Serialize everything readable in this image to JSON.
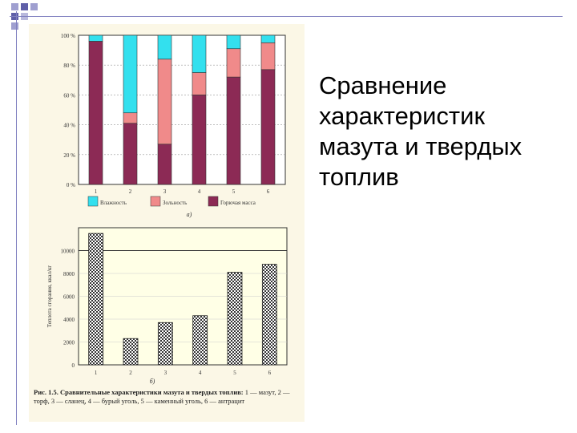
{
  "slide": {
    "title": "Сравнение характеристик мазута и твердых топлив"
  },
  "caption": {
    "lead": "Рис. 1.5. Сравнительные характеристики мазута и твердых топлив:",
    "body": "1 — мазут, 2 — торф, 3 — сланец, 4 — бурый уголь, 5 — каменный уголь, 6 — антрацит"
  },
  "colors": {
    "moisture": "#33e0ee",
    "ash": "#f08a8a",
    "combustible": "#8c2a55",
    "panel": "#fbf7e6",
    "accent": "#7f7fbf"
  },
  "chart_data": [
    {
      "type": "bar",
      "stacked": true,
      "panel_label": "а)",
      "categories": [
        "1",
        "2",
        "3",
        "4",
        "5",
        "6"
      ],
      "ylim": [
        0,
        100
      ],
      "yticks": [
        "0 %",
        "20 %",
        "40 %",
        "60 %",
        "80 %",
        "100 %"
      ],
      "grid": true,
      "legend": "bottom",
      "series": [
        {
          "name": "Горючая масса",
          "color": "#8c2a55",
          "values": [
            96,
            41,
            27,
            60,
            72,
            77
          ]
        },
        {
          "name": "Зольность",
          "color": "#f08a8a",
          "values": [
            0,
            7,
            57,
            15,
            19,
            18
          ]
        },
        {
          "name": "Влажность",
          "color": "#33e0ee",
          "values": [
            4,
            52,
            16,
            25,
            9,
            5
          ]
        }
      ]
    },
    {
      "type": "bar",
      "panel_label": "б)",
      "categories": [
        "1",
        "2",
        "3",
        "4",
        "5",
        "6"
      ],
      "ylabel": "Теплота сгорания, ккал/кг",
      "ylim": [
        0,
        12000
      ],
      "yticks": [
        "0",
        "2000",
        "4000",
        "6000",
        "8000",
        "10000"
      ],
      "grid": true,
      "values": [
        11500,
        2300,
        3700,
        4300,
        8100,
        8800
      ]
    }
  ]
}
